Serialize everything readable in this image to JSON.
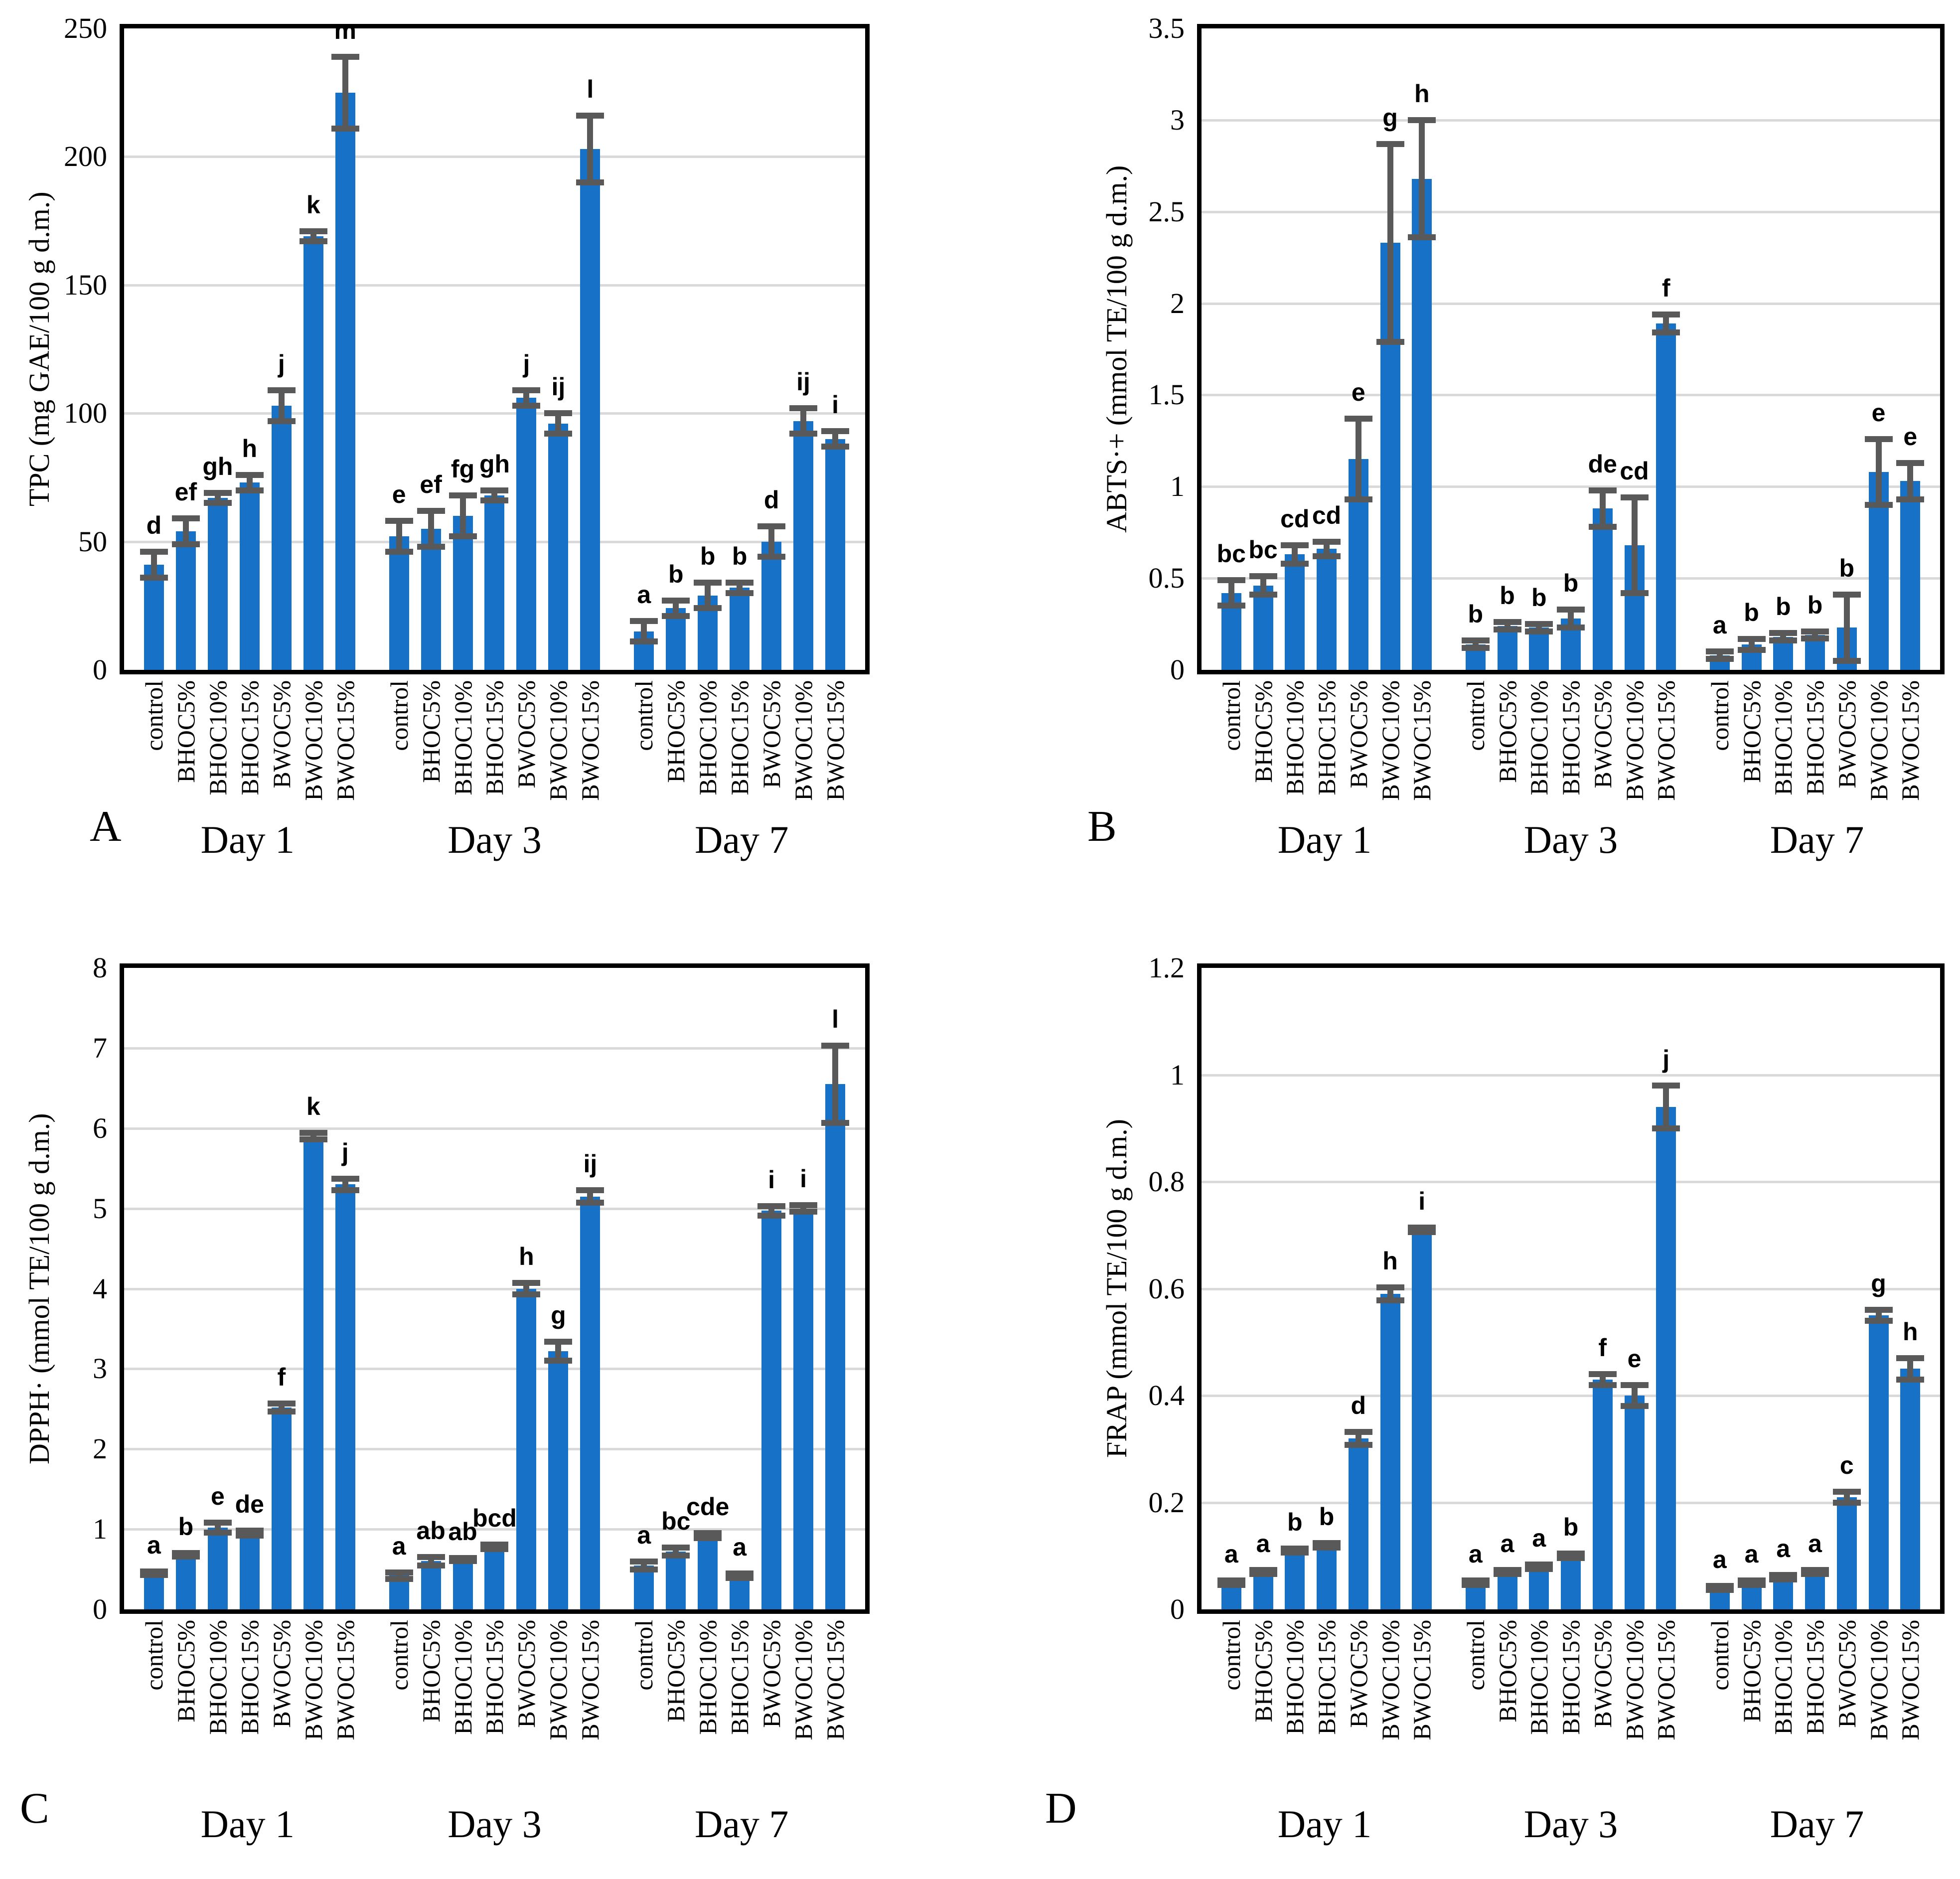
{
  "figure_title": "",
  "styles": {
    "bar_color": "#1771C6",
    "error_color": "#595959",
    "grid_color": "#D9D9D9",
    "axis_color": "#000000"
  },
  "chart_data": [
    {
      "type": "bar",
      "panel_letter": "A",
      "ylabel": "TPC (mg GAE/100 g d.m.)",
      "xlabel": "",
      "ylim": [
        0,
        250
      ],
      "y_ticks": [
        "0",
        "50",
        "100",
        "150",
        "200",
        "250"
      ],
      "grid": true,
      "legend_position": "none",
      "categories": [
        "control",
        "BHOC5%",
        "BHOC10%",
        "BHOC15%",
        "BWOC5%",
        "BWOC10%",
        "BWOC15%"
      ],
      "groups": [
        {
          "label": "Day 1",
          "values": [
            41,
            54,
            67,
            73,
            103,
            169,
            225
          ],
          "errors": [
            5,
            5,
            2,
            3,
            6,
            2,
            14
          ],
          "letters": [
            "d",
            "ef",
            "gh",
            "h",
            "j",
            "k",
            "m"
          ]
        },
        {
          "label": "Day 3",
          "values": [
            52,
            55,
            60,
            68,
            106,
            96,
            203
          ],
          "errors": [
            6,
            7,
            8,
            2,
            3,
            4,
            13
          ],
          "letters": [
            "e",
            "ef",
            "fg",
            "gh",
            "j",
            "ij",
            "l"
          ]
        },
        {
          "label": "Day 7",
          "values": [
            15,
            24,
            29,
            32,
            50,
            97,
            90
          ],
          "errors": [
            4,
            3,
            5,
            2,
            6,
            5,
            3
          ],
          "letters": [
            "a",
            "b",
            "b",
            "b",
            "d",
            "ij",
            "i"
          ]
        }
      ]
    },
    {
      "type": "bar",
      "panel_letter": "B",
      "ylabel": "ABTS·+ (mmol TE/100 g d.m.)",
      "xlabel": "",
      "ylim": [
        0,
        3.5
      ],
      "y_ticks": [
        "0",
        "0.5",
        "1",
        "1.5",
        "2",
        "2.5",
        "3",
        "3.5"
      ],
      "grid": true,
      "legend_position": "none",
      "categories": [
        "control",
        "BHOC5%",
        "BHOC10%",
        "BHOC15%",
        "BWOC5%",
        "BWOC10%",
        "BWOC15%"
      ],
      "groups": [
        {
          "label": "Day 1",
          "values": [
            0.42,
            0.46,
            0.63,
            0.66,
            1.15,
            2.33,
            2.68
          ],
          "errors": [
            0.07,
            0.05,
            0.05,
            0.04,
            0.22,
            0.54,
            0.32
          ],
          "letters": [
            "bc",
            "bc",
            "cd",
            "cd",
            "e",
            "g",
            "h"
          ]
        },
        {
          "label": "Day 3",
          "values": [
            0.14,
            0.24,
            0.23,
            0.28,
            0.88,
            0.68,
            1.89
          ],
          "errors": [
            0.02,
            0.02,
            0.02,
            0.05,
            0.1,
            0.26,
            0.05
          ],
          "letters": [
            "b",
            "b",
            "b",
            "b",
            "de",
            "cd",
            "f"
          ]
        },
        {
          "label": "Day 7",
          "values": [
            0.08,
            0.14,
            0.18,
            0.19,
            0.23,
            1.08,
            1.03
          ],
          "errors": [
            0.02,
            0.03,
            0.02,
            0.02,
            0.18,
            0.18,
            0.1
          ],
          "letters": [
            "a",
            "b",
            "b",
            "b",
            "b",
            "e",
            "e"
          ]
        }
      ]
    },
    {
      "type": "bar",
      "panel_letter": "C",
      "ylabel": "DPPH· (mmol TE/100 g d.m.)",
      "xlabel": "",
      "ylim": [
        0,
        8
      ],
      "y_ticks": [
        "0",
        "1",
        "2",
        "3",
        "4",
        "5",
        "6",
        "7",
        "8"
      ],
      "grid": true,
      "legend_position": "none",
      "categories": [
        "control",
        "BHOC5%",
        "BHOC10%",
        "BHOC15%",
        "BWOC5%",
        "BWOC10%",
        "BWOC15%"
      ],
      "groups": [
        {
          "label": "Day 1",
          "values": [
            0.45,
            0.68,
            1.02,
            0.95,
            2.52,
            5.9,
            5.3
          ],
          "errors": [
            0.02,
            0.02,
            0.06,
            0.03,
            0.05,
            0.04,
            0.07
          ],
          "letters": [
            "a",
            "b",
            "e",
            "de",
            "f",
            "k",
            "j"
          ]
        },
        {
          "label": "Day 3",
          "values": [
            0.42,
            0.6,
            0.62,
            0.78,
            4.0,
            3.22,
            5.15
          ],
          "errors": [
            0.04,
            0.05,
            0.02,
            0.03,
            0.07,
            0.12,
            0.08
          ],
          "letters": [
            "a",
            "ab",
            "ab",
            "bcd",
            "h",
            "g",
            "ij"
          ]
        },
        {
          "label": "Day 7",
          "values": [
            0.55,
            0.72,
            0.92,
            0.42,
            4.97,
            5.0,
            6.55
          ],
          "errors": [
            0.05,
            0.05,
            0.03,
            0.03,
            0.06,
            0.04,
            0.48
          ],
          "letters": [
            "a",
            "bc",
            "cde",
            "a",
            "i",
            "i",
            "l"
          ]
        }
      ]
    },
    {
      "type": "bar",
      "panel_letter": "D",
      "ylabel": "FRAP (mmol TE/100 g d.m.)",
      "xlabel": "",
      "ylim": [
        0,
        1.2
      ],
      "y_ticks": [
        "0",
        "0.2",
        "0.4",
        "0.6",
        "0.8",
        "1",
        "1.2"
      ],
      "grid": true,
      "legend_position": "none",
      "categories": [
        "control",
        "BHOC5%",
        "BHOC10%",
        "BHOC15%",
        "BWOC5%",
        "BWOC10%",
        "BWOC15%"
      ],
      "groups": [
        {
          "label": "Day 1",
          "values": [
            0.05,
            0.07,
            0.11,
            0.12,
            0.32,
            0.59,
            0.71
          ],
          "errors": [
            0.004,
            0.004,
            0.004,
            0.004,
            0.012,
            0.012,
            0.004
          ],
          "letters": [
            "a",
            "a",
            "b",
            "b",
            "d",
            "h",
            "i"
          ]
        },
        {
          "label": "Day 3",
          "values": [
            0.05,
            0.07,
            0.08,
            0.1,
            0.43,
            0.4,
            0.94
          ],
          "errors": [
            0.004,
            0.004,
            0.004,
            0.004,
            0.01,
            0.02,
            0.04
          ],
          "letters": [
            "a",
            "a",
            "a",
            "b",
            "f",
            "e",
            "j"
          ]
        },
        {
          "label": "Day 7",
          "values": [
            0.04,
            0.05,
            0.06,
            0.07,
            0.21,
            0.55,
            0.45
          ],
          "errors": [
            0.004,
            0.004,
            0.004,
            0.004,
            0.01,
            0.01,
            0.02
          ],
          "letters": [
            "a",
            "a",
            "a",
            "a",
            "c",
            "g",
            "h"
          ]
        }
      ]
    }
  ]
}
